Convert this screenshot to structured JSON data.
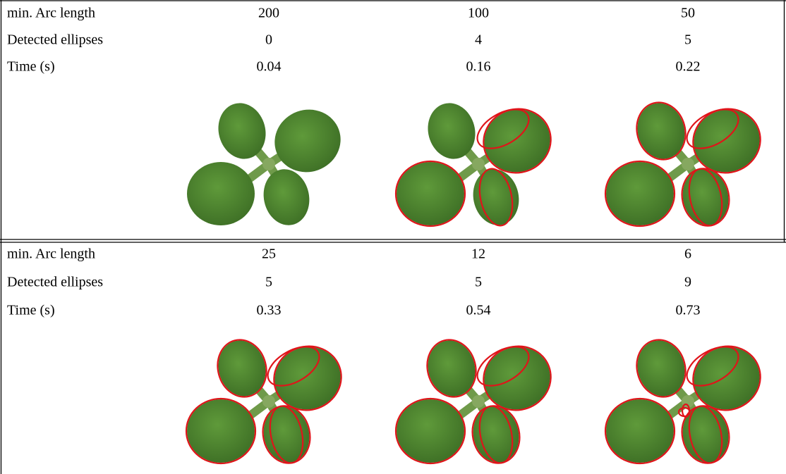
{
  "blocks": [
    {
      "rows": [
        {
          "label": "min. Arc length",
          "values": [
            200,
            100,
            50
          ]
        },
        {
          "label": "Detected ellipses",
          "values": [
            0,
            4,
            5
          ]
        },
        {
          "label": "Time (s)",
          "values": [
            0.04,
            0.16,
            0.22
          ]
        }
      ]
    },
    {
      "rows": [
        {
          "label": "min. Arc length",
          "values": [
            25,
            12,
            6
          ]
        },
        {
          "label": "Detected ellipses",
          "values": [
            5,
            5,
            9
          ]
        },
        {
          "label": "Time (s)",
          "values": [
            0.33,
            0.54,
            0.73
          ]
        }
      ]
    }
  ]
}
